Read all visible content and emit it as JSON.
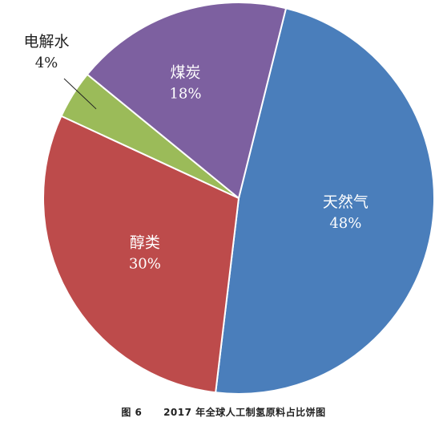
{
  "chart_data": {
    "type": "pie",
    "slices": [
      {
        "label": "天然气",
        "value": 48,
        "display": "48%",
        "color": "#4a7ebb",
        "label_color": "#ffffff"
      },
      {
        "label": "醇类",
        "value": 30,
        "display": "30%",
        "color": "#bd4b4b",
        "label_color": "#ffffff"
      },
      {
        "label": "电解水",
        "value": 4,
        "display": "4%",
        "color": "#9bbb59",
        "label_color": "#222222"
      },
      {
        "label": "煤炭",
        "value": 18,
        "display": "18%",
        "color": "#7d60a0",
        "label_color": "#ffffff"
      }
    ]
  },
  "caption": {
    "figure": "图 6",
    "text": "2017 年全球人工制氢原料占比饼图"
  }
}
